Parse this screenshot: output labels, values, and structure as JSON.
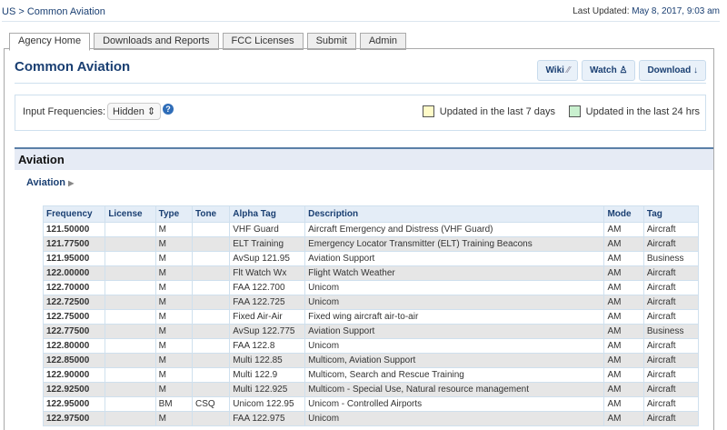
{
  "breadcrumb": "US > Common Aviation",
  "last_updated_label": "Last Updated:",
  "last_updated": "May 8, 2017, 9:03 am",
  "tabs": [
    {
      "label": "Agency Home",
      "active": true
    },
    {
      "label": "Downloads and Reports"
    },
    {
      "label": "FCC Licenses"
    },
    {
      "label": "Submit"
    },
    {
      "label": "Admin"
    }
  ],
  "title": "Common Aviation",
  "buttons": {
    "wiki": "Wiki",
    "watch": "Watch",
    "download": "Download"
  },
  "options": {
    "label": "Input Frequencies:",
    "value": "Hidden",
    "legend7": "Updated in the last 7 days",
    "legend24": "Updated in the last 24 hrs",
    "color7": "#fffbc8",
    "color24": "#c9f0cf"
  },
  "section": "Aviation",
  "subsection": "Aviation",
  "table": {
    "headers": [
      "Frequency",
      "License",
      "Type",
      "Tone",
      "Alpha Tag",
      "Description",
      "Mode",
      "Tag"
    ],
    "rows": [
      [
        "121.50000",
        "",
        "M",
        "",
        "VHF Guard",
        "Aircraft Emergency and Distress (VHF Guard)",
        "AM",
        "Aircraft"
      ],
      [
        "121.77500",
        "",
        "M",
        "",
        "ELT Training",
        "Emergency Locator Transmitter (ELT) Training Beacons",
        "AM",
        "Aircraft"
      ],
      [
        "121.95000",
        "",
        "M",
        "",
        "AvSup 121.95",
        "Aviation Support",
        "AM",
        "Business"
      ],
      [
        "122.00000",
        "",
        "M",
        "",
        "Flt Watch Wx",
        "Flight Watch Weather",
        "AM",
        "Aircraft"
      ],
      [
        "122.70000",
        "",
        "M",
        "",
        "FAA 122.700",
        "Unicom",
        "AM",
        "Aircraft"
      ],
      [
        "122.72500",
        "",
        "M",
        "",
        "FAA 122.725",
        "Unicom",
        "AM",
        "Aircraft"
      ],
      [
        "122.75000",
        "",
        "M",
        "",
        "Fixed Air-Air",
        "Fixed wing aircraft air-to-air",
        "AM",
        "Aircraft"
      ],
      [
        "122.77500",
        "",
        "M",
        "",
        "AvSup 122.775",
        "Aviation Support",
        "AM",
        "Business"
      ],
      [
        "122.80000",
        "",
        "M",
        "",
        "FAA 122.8",
        "Unicom",
        "AM",
        "Aircraft"
      ],
      [
        "122.85000",
        "",
        "M",
        "",
        "Multi 122.85",
        "Multicom, Aviation Support",
        "AM",
        "Aircraft"
      ],
      [
        "122.90000",
        "",
        "M",
        "",
        "Multi 122.9",
        "Multicom, Search and Rescue Training",
        "AM",
        "Aircraft"
      ],
      [
        "122.92500",
        "",
        "M",
        "",
        "Multi 122.925",
        "Multicom - Special Use, Natural resource management",
        "AM",
        "Aircraft"
      ],
      [
        "122.95000",
        "",
        "BM",
        "CSQ",
        "Unicom 122.95",
        "Unicom - Controlled Airports",
        "AM",
        "Aircraft"
      ],
      [
        "122.97500",
        "",
        "M",
        "",
        "FAA 122.975",
        "Unicom",
        "AM",
        "Aircraft"
      ]
    ]
  }
}
